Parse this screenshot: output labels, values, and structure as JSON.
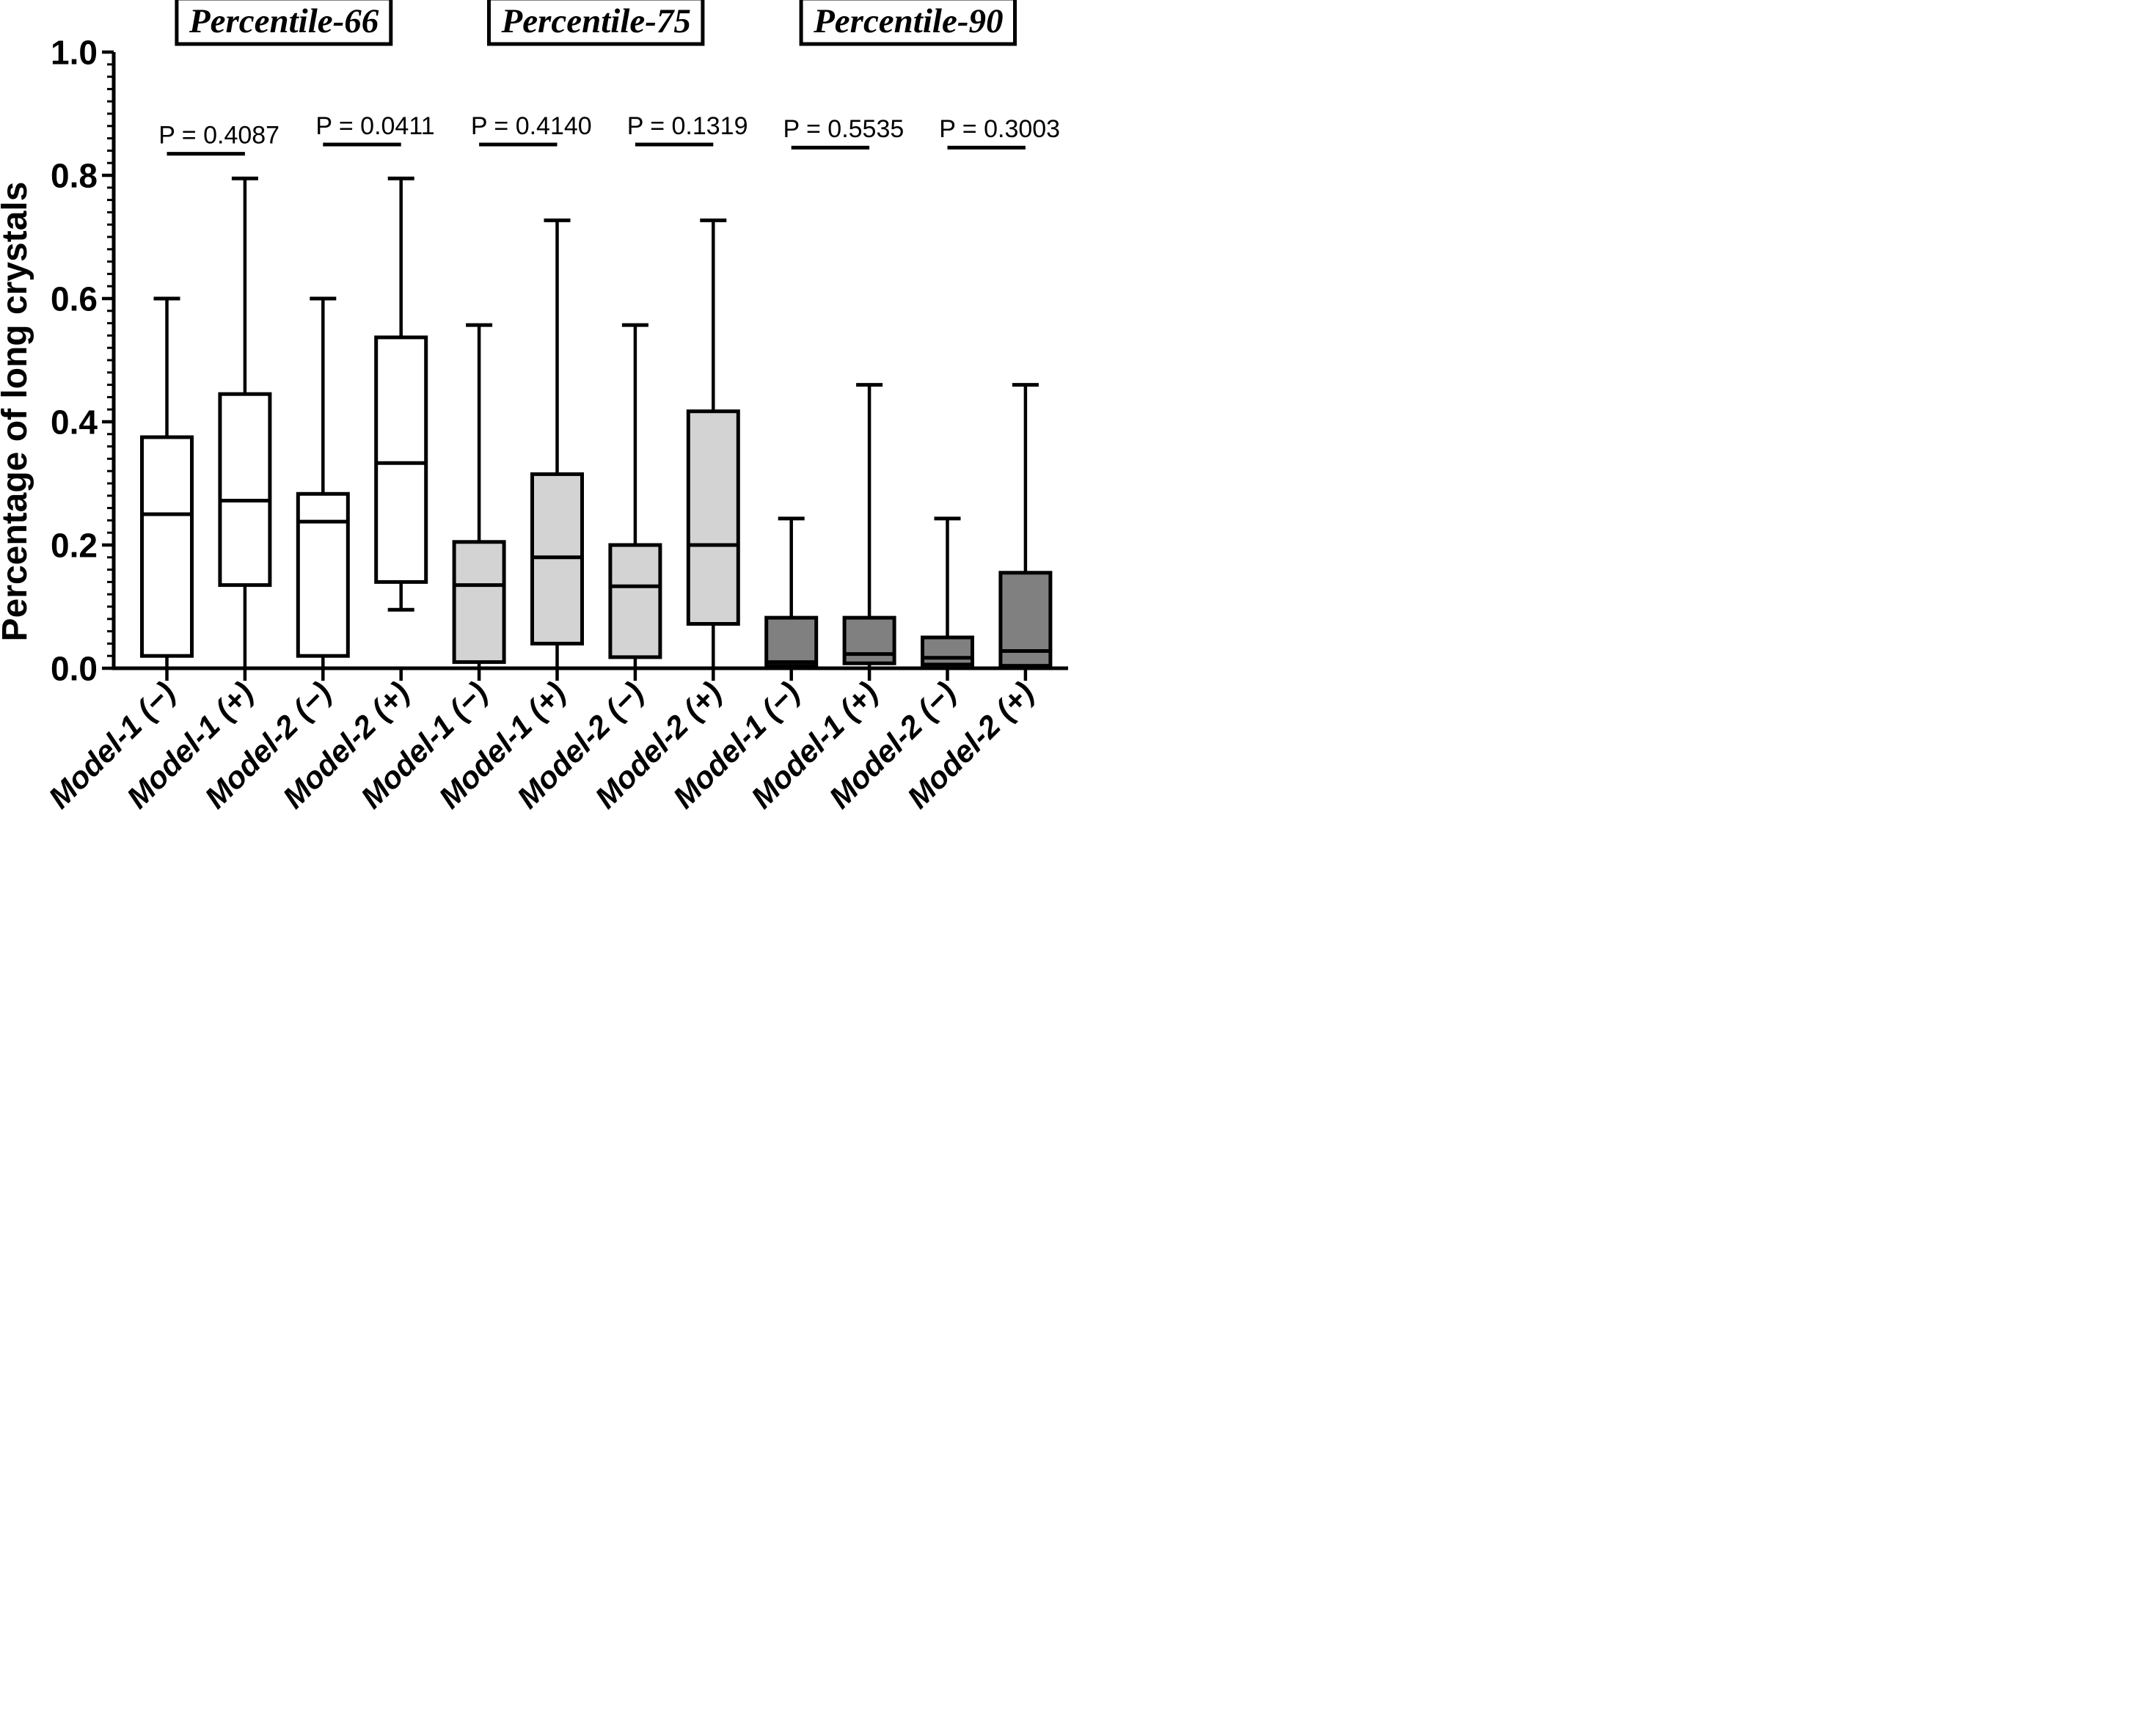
{
  "figure": {
    "background": "#ffffff",
    "ink": "#000000"
  },
  "chart_data": {
    "type": "box",
    "title": "",
    "xlabel": "",
    "ylabel": "Percentage of long crystals",
    "ylim": [
      0.0,
      1.0
    ],
    "ytick_labels": [
      "0.0",
      "0.2",
      "0.4",
      "0.6",
      "0.8",
      "1.0"
    ],
    "yticks": [
      0.0,
      0.2,
      0.4,
      0.6,
      0.8,
      1.0
    ],
    "minor_tick_step": 0.02,
    "grid": false,
    "legend_position": "none",
    "groups": [
      {
        "title": "Percentile-66",
        "fill": "#ffffff"
      },
      {
        "title": "Percentile-75",
        "fill": "#d3d3d3"
      },
      {
        "title": "Percentile-90",
        "fill": "#808080"
      }
    ],
    "boxes": [
      {
        "group": 0,
        "label": "Model-1 (−)",
        "fill": "#ffffff",
        "whisker_low": 0.0,
        "q1": 0.02,
        "median": 0.25,
        "q3": 0.375,
        "whisker_high": 0.6
      },
      {
        "group": 0,
        "label": "Model-1 (+)",
        "fill": "#ffffff",
        "whisker_low": 0.0,
        "q1": 0.135,
        "median": 0.272,
        "q3": 0.445,
        "whisker_high": 0.795
      },
      {
        "group": 0,
        "label": "Model-2 (−)",
        "fill": "#ffffff",
        "whisker_low": 0.0,
        "q1": 0.02,
        "median": 0.238,
        "q3": 0.283,
        "whisker_high": 0.6
      },
      {
        "group": 0,
        "label": "Model-2 (+)",
        "fill": "#ffffff",
        "whisker_low": 0.095,
        "q1": 0.14,
        "median": 0.333,
        "q3": 0.537,
        "whisker_high": 0.795
      },
      {
        "group": 1,
        "label": "Model-1 (−)",
        "fill": "#d3d3d3",
        "whisker_low": 0.0,
        "q1": 0.01,
        "median": 0.135,
        "q3": 0.205,
        "whisker_high": 0.557
      },
      {
        "group": 1,
        "label": "Model-1 (+)",
        "fill": "#d3d3d3",
        "whisker_low": 0.0,
        "q1": 0.04,
        "median": 0.18,
        "q3": 0.315,
        "whisker_high": 0.727
      },
      {
        "group": 1,
        "label": "Model-2 (−)",
        "fill": "#d3d3d3",
        "whisker_low": 0.0,
        "q1": 0.018,
        "median": 0.133,
        "q3": 0.2,
        "whisker_high": 0.557
      },
      {
        "group": 1,
        "label": "Model-2 (+)",
        "fill": "#d3d3d3",
        "whisker_low": 0.0,
        "q1": 0.072,
        "median": 0.2,
        "q3": 0.417,
        "whisker_high": 0.727
      },
      {
        "group": 2,
        "label": "Model-1 (−)",
        "fill": "#808080",
        "whisker_low": 0.0,
        "q1": 0.004,
        "median": 0.01,
        "q3": 0.082,
        "whisker_high": 0.243
      },
      {
        "group": 2,
        "label": "Model-1 (+)",
        "fill": "#808080",
        "whisker_low": 0.0,
        "q1": 0.008,
        "median": 0.023,
        "q3": 0.082,
        "whisker_high": 0.46
      },
      {
        "group": 2,
        "label": "Model-2 (−)",
        "fill": "#808080",
        "whisker_low": 0.0,
        "q1": 0.006,
        "median": 0.017,
        "q3": 0.05,
        "whisker_high": 0.243
      },
      {
        "group": 2,
        "label": "Model-2 (+)",
        "fill": "#808080",
        "whisker_low": 0.0,
        "q1": 0.004,
        "median": 0.028,
        "q3": 0.155,
        "whisker_high": 0.46
      }
    ],
    "significance_brackets": [
      {
        "left_box": 0,
        "right_box": 1,
        "label": "P = 0.4087",
        "y": 0.835
      },
      {
        "left_box": 2,
        "right_box": 3,
        "label": "P = 0.0411",
        "y": 0.85
      },
      {
        "left_box": 4,
        "right_box": 5,
        "label": "P = 0.4140",
        "y": 0.85
      },
      {
        "left_box": 6,
        "right_box": 7,
        "label": "P = 0.1319",
        "y": 0.85
      },
      {
        "left_box": 8,
        "right_box": 9,
        "label": "P = 0.5535",
        "y": 0.845
      },
      {
        "left_box": 10,
        "right_box": 11,
        "label": "P = 0.3003",
        "y": 0.845
      }
    ]
  }
}
